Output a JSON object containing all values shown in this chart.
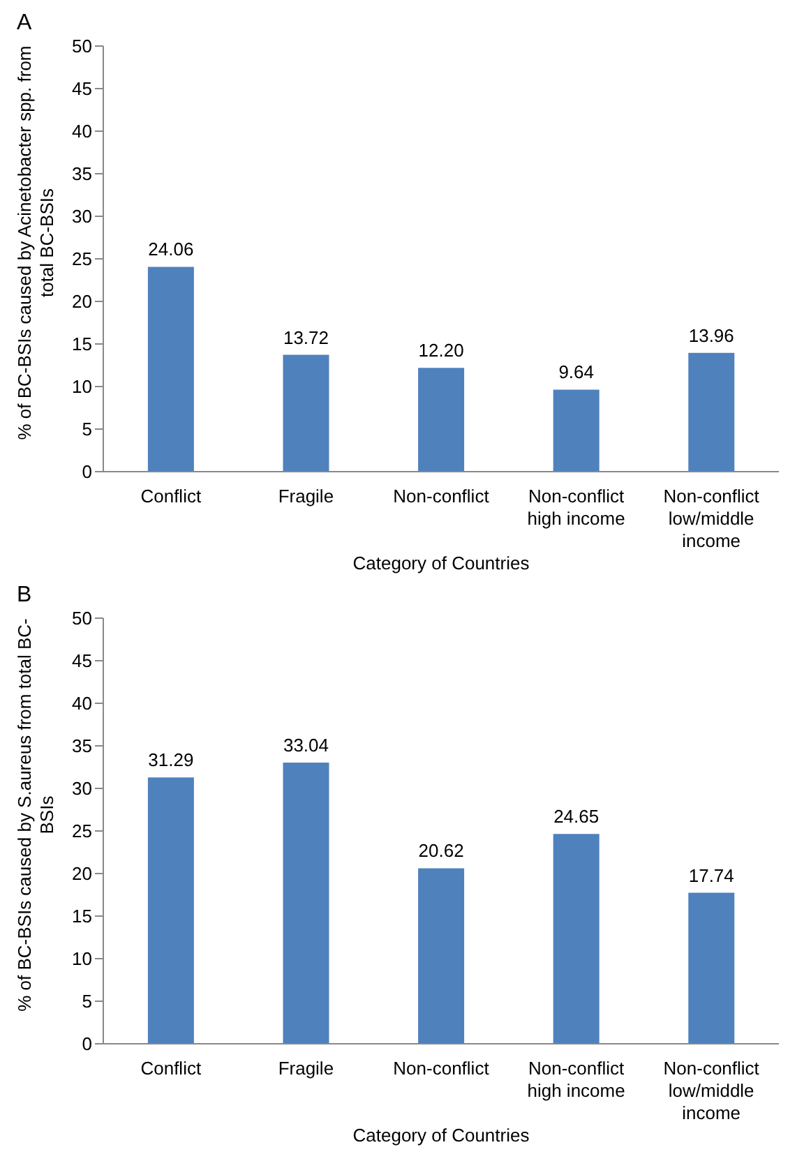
{
  "chart_data": [
    {
      "type": "bar",
      "title": "A",
      "ylabel": "% of BC-BSIs caused by Acinetobacter spp. from total BC-BSIs",
      "xlabel": "Category of Countries",
      "categories": [
        "Conflict",
        "Fragile",
        "Non-conflict",
        "Non-conflict high income",
        "Non-conflict low/middle income"
      ],
      "values": [
        24.06,
        13.72,
        12.2,
        9.64,
        13.96
      ],
      "value_labels": [
        "24.06",
        "13.72",
        "12.20",
        "9.64",
        "13.96"
      ],
      "color": "#4f81bd",
      "ylim": [
        0,
        50
      ],
      "yticks": [
        0,
        5,
        10,
        15,
        20,
        25,
        30,
        35,
        40,
        45,
        50
      ],
      "grid": false,
      "legend": false
    },
    {
      "type": "bar",
      "title": "B",
      "ylabel": "% of BC-BSIs caused by S.aureus from total BC-BSIs",
      "xlabel": "Category of Countries",
      "categories": [
        "Conflict",
        "Fragile",
        "Non-conflict",
        "Non-conflict high income",
        "Non-conflict low/middle income"
      ],
      "values": [
        31.29,
        33.04,
        20.62,
        24.65,
        17.74
      ],
      "value_labels": [
        "31.29",
        "33.04",
        "20.62",
        "24.65",
        "17.74"
      ],
      "color": "#4f81bd",
      "ylim": [
        0,
        50
      ],
      "yticks": [
        0,
        5,
        10,
        15,
        20,
        25,
        30,
        35,
        40,
        45,
        50
      ],
      "grid": false,
      "legend": false
    }
  ]
}
